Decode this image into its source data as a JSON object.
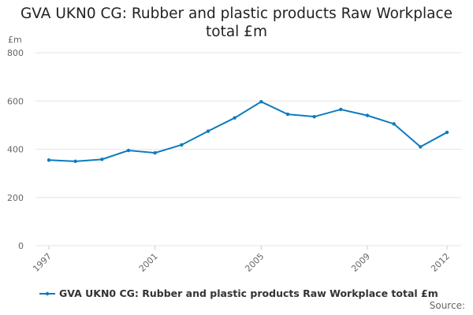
{
  "chart_data": {
    "type": "line",
    "title": "GVA UKN0 CG: Rubber and plastic products Raw Workplace total £m",
    "y_label": "£m",
    "x": [
      1997,
      1998,
      1999,
      2000,
      2001,
      2002,
      2003,
      2004,
      2005,
      2006,
      2007,
      2008,
      2009,
      2010,
      2011,
      2012
    ],
    "series": [
      {
        "name": "GVA UKN0 CG: Rubber and plastic products Raw Workplace total £m",
        "color": "#0e7bbd",
        "values": [
          355,
          350,
          358,
          395,
          385,
          418,
          475,
          530,
          597,
          545,
          535,
          565,
          540,
          505,
          410,
          470
        ]
      }
    ],
    "xlim": [
      1997,
      2012
    ],
    "xticks": [
      1997,
      2001,
      2005,
      2009,
      2012
    ],
    "ylim": [
      0,
      800
    ],
    "yticks": [
      0,
      200,
      400,
      600,
      800
    ],
    "grid": true,
    "legend": "bottom",
    "source_label": "Source:"
  }
}
